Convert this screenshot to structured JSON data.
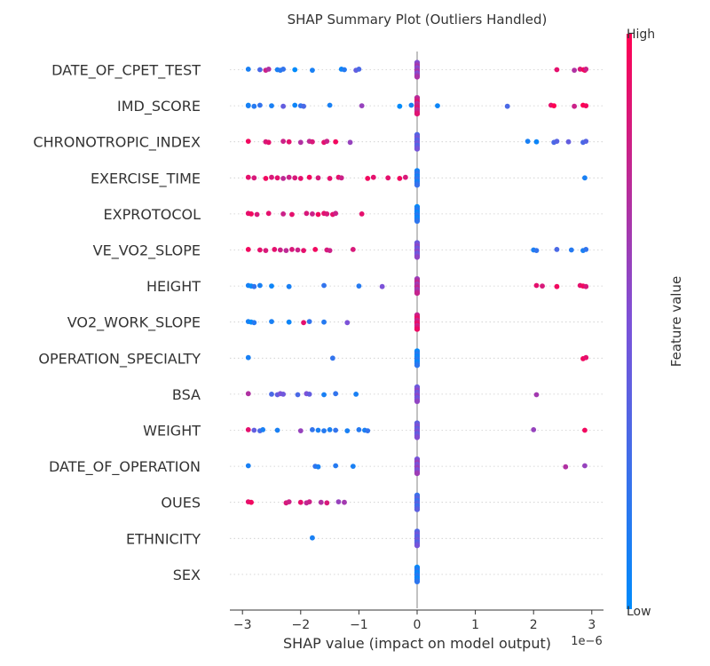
{
  "chart_data": {
    "type": "scatter",
    "title": "SHAP Summary Plot (Outliers Handled)",
    "xlabel": "SHAP value (impact on model output)",
    "x_offset_text": "1e−6",
    "xlim": [
      -3.15,
      3.15
    ],
    "xticks": [
      -3,
      -2,
      -1,
      0,
      1,
      2,
      3
    ],
    "xtick_labels": [
      "−3",
      "−2",
      "−1",
      "0",
      "1",
      "2",
      "3"
    ],
    "colorbar": {
      "label": "Feature value",
      "high_label": "High",
      "low_label": "Low",
      "high_color": "#ff0052",
      "low_color": "#008bfb",
      "mid_color": "#7c52d8"
    },
    "features": [
      {
        "name": "DATE_OF_CPET_TEST",
        "points": [
          {
            "x": -2.9,
            "v": 0.1
          },
          {
            "x": -2.7,
            "v": 0.3
          },
          {
            "x": -2.6,
            "v": 0.8
          },
          {
            "x": -2.55,
            "v": 0.7
          },
          {
            "x": -2.4,
            "v": 0.1
          },
          {
            "x": -2.35,
            "v": 0.15
          },
          {
            "x": -2.3,
            "v": 0.2
          },
          {
            "x": -2.1,
            "v": 0.0
          },
          {
            "x": -1.8,
            "v": 0.1
          },
          {
            "x": -1.3,
            "v": 0.05
          },
          {
            "x": -1.25,
            "v": 0.15
          },
          {
            "x": -1.05,
            "v": 0.4
          },
          {
            "x": -1.0,
            "v": 0.3
          },
          {
            "x": 2.4,
            "v": 0.9
          },
          {
            "x": 2.7,
            "v": 0.7
          },
          {
            "x": 2.8,
            "v": 0.85
          },
          {
            "x": 2.86,
            "v": 1.0
          },
          {
            "x": 2.88,
            "v": 0.95
          },
          {
            "x": 2.9,
            "v": 0.8
          }
        ]
      },
      {
        "name": "IMD_SCORE",
        "points": [
          {
            "x": -2.9,
            "v": 0.0
          },
          {
            "x": -2.9,
            "v": 0.1
          },
          {
            "x": -2.8,
            "v": 0.15
          },
          {
            "x": -2.7,
            "v": 0.2
          },
          {
            "x": -2.5,
            "v": 0.1
          },
          {
            "x": -2.3,
            "v": 0.4
          },
          {
            "x": -2.1,
            "v": 0.05
          },
          {
            "x": -2.0,
            "v": 0.2
          },
          {
            "x": -1.95,
            "v": 0.3
          },
          {
            "x": -1.5,
            "v": 0.1
          },
          {
            "x": -0.95,
            "v": 0.6
          },
          {
            "x": -0.3,
            "v": 0.0
          },
          {
            "x": -0.1,
            "v": 0.1
          },
          {
            "x": 0.35,
            "v": 0.05
          },
          {
            "x": 1.55,
            "v": 0.3
          },
          {
            "x": 2.3,
            "v": 0.9
          },
          {
            "x": 2.35,
            "v": 1.0
          },
          {
            "x": 2.7,
            "v": 0.8
          },
          {
            "x": 2.85,
            "v": 1.0
          },
          {
            "x": 2.9,
            "v": 0.95
          }
        ]
      },
      {
        "name": "CHRONOTROPIC_INDEX",
        "points": [
          {
            "x": -2.9,
            "v": 0.95
          },
          {
            "x": -2.6,
            "v": 0.85
          },
          {
            "x": -2.55,
            "v": 0.9
          },
          {
            "x": -2.3,
            "v": 0.8
          },
          {
            "x": -2.2,
            "v": 0.9
          },
          {
            "x": -2.0,
            "v": 0.7
          },
          {
            "x": -1.85,
            "v": 0.75
          },
          {
            "x": -1.8,
            "v": 0.85
          },
          {
            "x": -1.6,
            "v": 0.9
          },
          {
            "x": -1.55,
            "v": 0.8
          },
          {
            "x": -1.4,
            "v": 0.95
          },
          {
            "x": -1.15,
            "v": 0.6
          },
          {
            "x": 1.9,
            "v": 0.1
          },
          {
            "x": 2.05,
            "v": 0.05
          },
          {
            "x": 2.35,
            "v": 0.3
          },
          {
            "x": 2.4,
            "v": 0.35
          },
          {
            "x": 2.6,
            "v": 0.4
          },
          {
            "x": 2.85,
            "v": 0.3
          },
          {
            "x": 2.9,
            "v": 0.35
          }
        ]
      },
      {
        "name": "EXERCISE_TIME",
        "points": [
          {
            "x": -2.9,
            "v": 0.9
          },
          {
            "x": -2.8,
            "v": 0.85
          },
          {
            "x": -2.6,
            "v": 0.95
          },
          {
            "x": -2.5,
            "v": 0.85
          },
          {
            "x": -2.4,
            "v": 0.9
          },
          {
            "x": -2.3,
            "v": 0.75
          },
          {
            "x": -2.2,
            "v": 0.8
          },
          {
            "x": -2.1,
            "v": 0.85
          },
          {
            "x": -2.0,
            "v": 0.9
          },
          {
            "x": -1.85,
            "v": 0.95
          },
          {
            "x": -1.7,
            "v": 0.85
          },
          {
            "x": -1.5,
            "v": 0.9
          },
          {
            "x": -1.35,
            "v": 0.9
          },
          {
            "x": -1.3,
            "v": 0.8
          },
          {
            "x": -0.85,
            "v": 0.95
          },
          {
            "x": -0.75,
            "v": 0.9
          },
          {
            "x": -0.5,
            "v": 0.9
          },
          {
            "x": -0.3,
            "v": 0.95
          },
          {
            "x": -0.2,
            "v": 0.85
          },
          {
            "x": 2.88,
            "v": 0.1
          }
        ]
      },
      {
        "name": "EXPROTOCOL",
        "points": [
          {
            "x": -2.9,
            "v": 0.9
          },
          {
            "x": -2.85,
            "v": 0.95
          },
          {
            "x": -2.75,
            "v": 0.85
          },
          {
            "x": -2.55,
            "v": 0.9
          },
          {
            "x": -2.3,
            "v": 0.8
          },
          {
            "x": -2.15,
            "v": 0.9
          },
          {
            "x": -1.9,
            "v": 0.85
          },
          {
            "x": -1.8,
            "v": 0.8
          },
          {
            "x": -1.7,
            "v": 0.95
          },
          {
            "x": -1.6,
            "v": 0.9
          },
          {
            "x": -1.55,
            "v": 0.85
          },
          {
            "x": -1.45,
            "v": 0.9
          },
          {
            "x": -1.4,
            "v": 0.8
          },
          {
            "x": -0.95,
            "v": 0.9
          }
        ]
      },
      {
        "name": "VE_VO2_SLOPE",
        "points": [
          {
            "x": -2.9,
            "v": 0.95
          },
          {
            "x": -2.7,
            "v": 0.9
          },
          {
            "x": -2.6,
            "v": 0.85
          },
          {
            "x": -2.45,
            "v": 0.9
          },
          {
            "x": -2.35,
            "v": 0.8
          },
          {
            "x": -2.25,
            "v": 0.75
          },
          {
            "x": -2.15,
            "v": 0.85
          },
          {
            "x": -2.05,
            "v": 0.8
          },
          {
            "x": -1.95,
            "v": 0.9
          },
          {
            "x": -1.75,
            "v": 0.95
          },
          {
            "x": -1.55,
            "v": 0.85
          },
          {
            "x": -1.5,
            "v": 0.8
          },
          {
            "x": -1.1,
            "v": 0.85
          },
          {
            "x": 2.0,
            "v": 0.1
          },
          {
            "x": 2.05,
            "v": 0.2
          },
          {
            "x": 2.4,
            "v": 0.3
          },
          {
            "x": 2.65,
            "v": 0.15
          },
          {
            "x": 2.85,
            "v": 0.1
          },
          {
            "x": 2.9,
            "v": 0.2
          }
        ]
      },
      {
        "name": "HEIGHT",
        "points": [
          {
            "x": -2.9,
            "v": 0.1
          },
          {
            "x": -2.85,
            "v": 0.0
          },
          {
            "x": -2.8,
            "v": 0.2
          },
          {
            "x": -2.7,
            "v": 0.1
          },
          {
            "x": -2.5,
            "v": 0.05
          },
          {
            "x": -2.2,
            "v": 0.1
          },
          {
            "x": -1.6,
            "v": 0.2
          },
          {
            "x": -1.0,
            "v": 0.15
          },
          {
            "x": -0.6,
            "v": 0.5
          },
          {
            "x": 2.05,
            "v": 0.9
          },
          {
            "x": 2.15,
            "v": 0.85
          },
          {
            "x": 2.4,
            "v": 0.95
          },
          {
            "x": 2.8,
            "v": 0.9
          },
          {
            "x": 2.85,
            "v": 0.95
          },
          {
            "x": 2.9,
            "v": 0.85
          }
        ]
      },
      {
        "name": "VO2_WORK_SLOPE",
        "points": [
          {
            "x": -2.9,
            "v": 0.1
          },
          {
            "x": -2.85,
            "v": 0.0
          },
          {
            "x": -2.8,
            "v": 0.15
          },
          {
            "x": -2.5,
            "v": 0.1
          },
          {
            "x": -2.2,
            "v": 0.05
          },
          {
            "x": -1.95,
            "v": 0.9
          },
          {
            "x": -1.85,
            "v": 0.2
          },
          {
            "x": -1.6,
            "v": 0.15
          },
          {
            "x": -1.2,
            "v": 0.5
          }
        ]
      },
      {
        "name": "OPERATION_SPECIALTY",
        "points": [
          {
            "x": -2.9,
            "v": 0.1
          },
          {
            "x": -1.45,
            "v": 0.2
          },
          {
            "x": 2.85,
            "v": 0.95
          },
          {
            "x": 2.9,
            "v": 0.9
          }
        ]
      },
      {
        "name": "BSA",
        "points": [
          {
            "x": -2.9,
            "v": 0.7
          },
          {
            "x": -2.5,
            "v": 0.3
          },
          {
            "x": -2.4,
            "v": 0.4
          },
          {
            "x": -2.35,
            "v": 0.5
          },
          {
            "x": -2.3,
            "v": 0.45
          },
          {
            "x": -2.05,
            "v": 0.3
          },
          {
            "x": -1.9,
            "v": 0.5
          },
          {
            "x": -1.85,
            "v": 0.4
          },
          {
            "x": -1.6,
            "v": 0.1
          },
          {
            "x": -1.4,
            "v": 0.2
          },
          {
            "x": -1.05,
            "v": 0.1
          },
          {
            "x": 2.05,
            "v": 0.65
          }
        ]
      },
      {
        "name": "WEIGHT",
        "points": [
          {
            "x": -2.9,
            "v": 0.9
          },
          {
            "x": -2.8,
            "v": 0.4
          },
          {
            "x": -2.7,
            "v": 0.3
          },
          {
            "x": -2.65,
            "v": 0.1
          },
          {
            "x": -2.4,
            "v": 0.1
          },
          {
            "x": -2.0,
            "v": 0.6
          },
          {
            "x": -1.8,
            "v": 0.2
          },
          {
            "x": -1.7,
            "v": 0.1
          },
          {
            "x": -1.6,
            "v": 0.15
          },
          {
            "x": -1.5,
            "v": 0.1
          },
          {
            "x": -1.4,
            "v": 0.2
          },
          {
            "x": -1.2,
            "v": 0.1
          },
          {
            "x": -1.0,
            "v": 0.15
          },
          {
            "x": -0.9,
            "v": 0.1
          },
          {
            "x": -0.85,
            "v": 0.2
          },
          {
            "x": 2.0,
            "v": 0.6
          },
          {
            "x": 2.88,
            "v": 0.95
          }
        ]
      },
      {
        "name": "DATE_OF_OPERATION",
        "points": [
          {
            "x": -2.9,
            "v": 0.1
          },
          {
            "x": -1.75,
            "v": 0.2
          },
          {
            "x": -1.7,
            "v": 0.1
          },
          {
            "x": -1.4,
            "v": 0.15
          },
          {
            "x": -1.1,
            "v": 0.1
          },
          {
            "x": 2.55,
            "v": 0.7
          },
          {
            "x": 2.88,
            "v": 0.6
          }
        ]
      },
      {
        "name": "OUES",
        "points": [
          {
            "x": -2.9,
            "v": 0.9
          },
          {
            "x": -2.85,
            "v": 0.95
          },
          {
            "x": -2.25,
            "v": 0.85
          },
          {
            "x": -2.2,
            "v": 0.8
          },
          {
            "x": -2.0,
            "v": 0.9
          },
          {
            "x": -1.9,
            "v": 0.75
          },
          {
            "x": -1.85,
            "v": 0.8
          },
          {
            "x": -1.65,
            "v": 0.7
          },
          {
            "x": -1.55,
            "v": 0.85
          },
          {
            "x": -1.35,
            "v": 0.6
          },
          {
            "x": -1.25,
            "v": 0.65
          }
        ]
      },
      {
        "name": "ETHNICITY",
        "points": [
          {
            "x": -1.8,
            "v": 0.1
          }
        ]
      },
      {
        "name": "SEX",
        "points": []
      }
    ],
    "center_column": [
      {
        "feature": "DATE_OF_CPET_TEST",
        "v": 0.6,
        "spread": 16
      },
      {
        "feature": "IMD_SCORE",
        "v": 0.8,
        "spread": 18
      },
      {
        "feature": "CHRONOTROPIC_INDEX",
        "v": 0.4,
        "spread": 16
      },
      {
        "feature": "EXERCISE_TIME",
        "v": 0.15,
        "spread": 16
      },
      {
        "feature": "EXPROTOCOL",
        "v": 0.1,
        "spread": 16
      },
      {
        "feature": "VE_VO2_SLOPE",
        "v": 0.5,
        "spread": 16
      },
      {
        "feature": "HEIGHT",
        "v": 0.7,
        "spread": 16
      },
      {
        "feature": "VO2_WORK_SLOPE",
        "v": 0.85,
        "spread": 16
      },
      {
        "feature": "OPERATION_SPECIALTY",
        "v": 0.1,
        "spread": 16
      },
      {
        "feature": "BSA",
        "v": 0.5,
        "spread": 16
      },
      {
        "feature": "WEIGHT",
        "v": 0.45,
        "spread": 16
      },
      {
        "feature": "DATE_OF_OPERATION",
        "v": 0.55,
        "spread": 16
      },
      {
        "feature": "OUES",
        "v": 0.3,
        "spread": 16
      },
      {
        "feature": "ETHNICITY",
        "v": 0.4,
        "spread": 16
      },
      {
        "feature": "SEX",
        "v": 0.1,
        "spread": 16
      }
    ]
  }
}
